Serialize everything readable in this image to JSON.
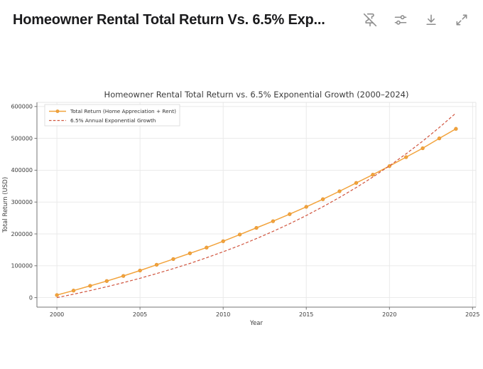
{
  "header": {
    "title": "Homeowner Rental Total Return Vs. 6.5% Exp...",
    "actions": [
      {
        "label": "Unpin",
        "icon": "pin-off-icon"
      },
      {
        "label": "Chart settings",
        "icon": "sliders-icon"
      },
      {
        "label": "Download",
        "icon": "download-icon"
      },
      {
        "label": "Expand",
        "icon": "expand-icon"
      }
    ]
  },
  "chart_data": {
    "type": "line",
    "title": "Homeowner Rental Total Return vs. 6.5% Exponential Growth (2000–2024)",
    "xlabel": "Year",
    "ylabel": "Total Return (USD)",
    "x": [
      2000,
      2001,
      2002,
      2003,
      2004,
      2005,
      2006,
      2007,
      2008,
      2009,
      2010,
      2011,
      2012,
      2013,
      2014,
      2015,
      2016,
      2017,
      2018,
      2019,
      2020,
      2021,
      2022,
      2023,
      2024
    ],
    "series": [
      {
        "name": "Total Return (Home Appreciation + Rent)",
        "color": "#F2A33C",
        "marker_edge": "#E2922D",
        "style": "solid",
        "marker": "circle",
        "width": 1.5,
        "values": [
          8000,
          22000,
          37000,
          52000,
          68000,
          85000,
          103000,
          121000,
          139000,
          157000,
          177000,
          198000,
          219000,
          240000,
          262000,
          285000,
          309000,
          334000,
          360000,
          386000,
          413000,
          441000,
          469000,
          500000,
          530000
        ]
      },
      {
        "name": "6.5% Annual Exponential Growth",
        "color": "#D0543E",
        "style": "dashed",
        "marker": "none",
        "width": 1.2,
        "dash": "4 2.6",
        "values": [
          0,
          10700,
          22000,
          34100,
          47000,
          60700,
          75300,
          90900,
          107400,
          125100,
          143900,
          163900,
          185200,
          207900,
          232000,
          257800,
          285200,
          314400,
          345500,
          378600,
          413900,
          451400,
          491400,
          534100,
          579400
        ]
      }
    ],
    "xticks": [
      2000,
      2005,
      2010,
      2015,
      2020,
      2025
    ],
    "yticks": [
      0,
      100000,
      200000,
      300000,
      400000,
      500000,
      600000
    ],
    "xlim": [
      1998.8,
      2025.2
    ],
    "ylim": [
      -30000,
      613000
    ],
    "grid": true,
    "legend_position": "upper left",
    "colors": {
      "grid": "#E8E8E8",
      "spine": "#747474",
      "spine_light": "#E5E5E5",
      "legend_border": "#D8D8D8"
    }
  }
}
